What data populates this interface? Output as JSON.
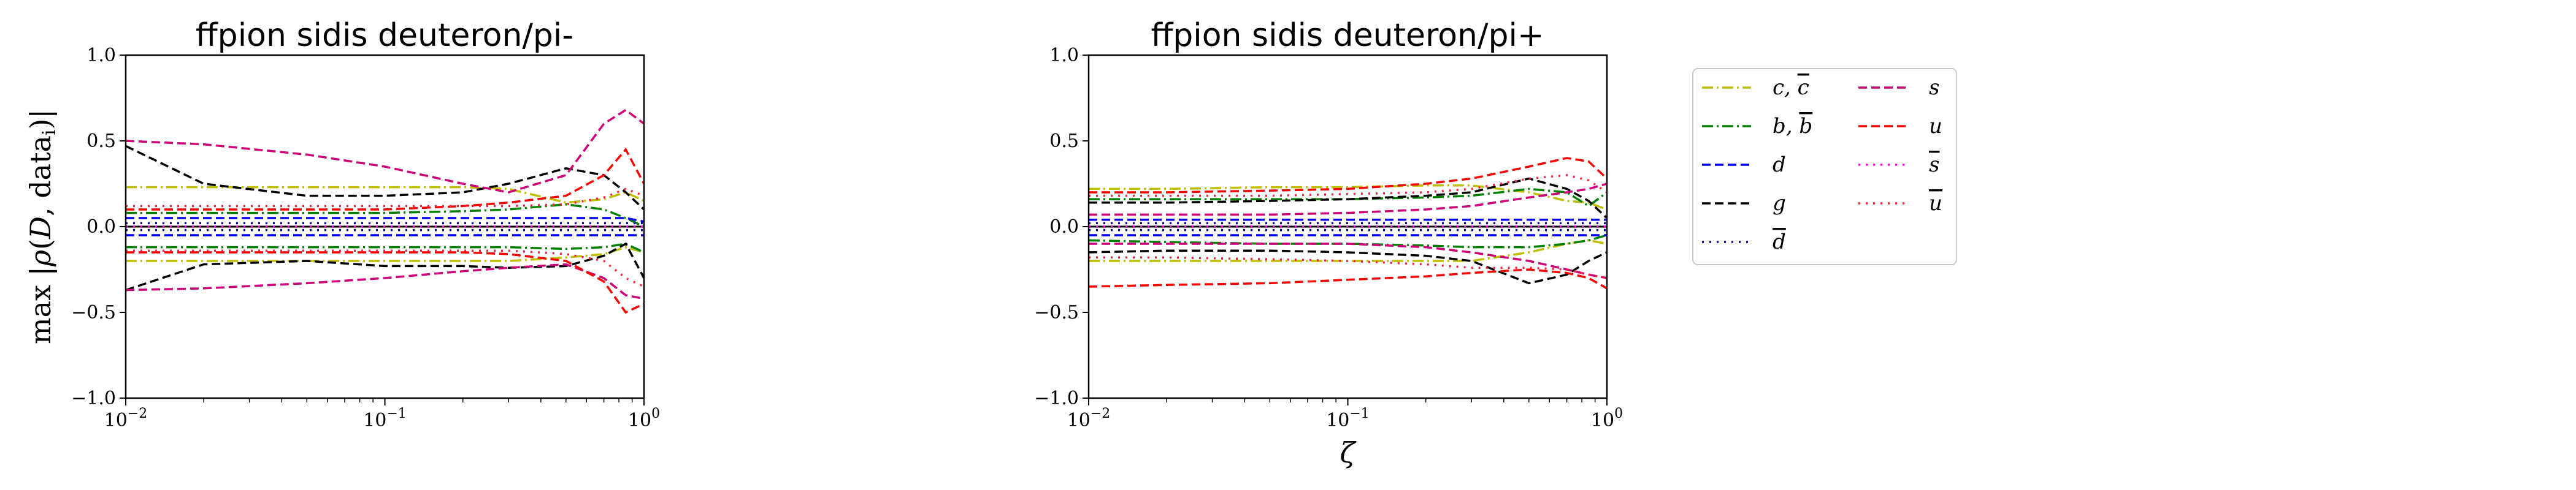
{
  "chart_data": [
    {
      "type": "line",
      "title": "ffpion sidis deuteron/pi-",
      "xlabel": "",
      "ylabel": "max |ρ(D, data_i)|",
      "xscale": "log",
      "xlim": [
        0.01,
        1
      ],
      "ylim": [
        -1,
        1
      ],
      "xticks": [
        "10^-2",
        "10^-1",
        "10^0"
      ],
      "yticks": [
        "−1.0",
        "−0.5",
        "0.0",
        "0.5",
        "1.0"
      ],
      "grid": false,
      "zero_line": true,
      "x": [
        0.01,
        0.02,
        0.05,
        0.1,
        0.2,
        0.3,
        0.5,
        0.7,
        0.85,
        1.0
      ],
      "series": [
        {
          "name": "c, c̄",
          "color": "#bfbf00",
          "upper": [
            0.23,
            0.23,
            0.23,
            0.23,
            0.23,
            0.22,
            0.14,
            0.16,
            0.2,
            0.15
          ],
          "lower": [
            -0.2,
            -0.2,
            -0.2,
            -0.2,
            -0.2,
            -0.2,
            -0.18,
            -0.16,
            -0.12,
            -0.15
          ]
        },
        {
          "name": "b, b̄",
          "color": "#008000",
          "upper": [
            0.08,
            0.08,
            0.08,
            0.08,
            0.09,
            0.1,
            0.13,
            0.1,
            0.05,
            0.0
          ],
          "lower": [
            -0.12,
            -0.12,
            -0.12,
            -0.12,
            -0.12,
            -0.12,
            -0.13,
            -0.12,
            -0.1,
            -0.15
          ]
        },
        {
          "name": "d",
          "color": "#0000ff",
          "upper": [
            0.05,
            0.05,
            0.05,
            0.05,
            0.05,
            0.05,
            0.05,
            0.05,
            0.05,
            0.03
          ],
          "lower": [
            -0.05,
            -0.05,
            -0.05,
            -0.05,
            -0.05,
            -0.05,
            -0.05,
            -0.05,
            -0.05,
            -0.05
          ]
        },
        {
          "name": "g",
          "color": "#000000",
          "upper": [
            0.47,
            0.25,
            0.18,
            0.18,
            0.2,
            0.25,
            0.34,
            0.3,
            0.2,
            0.1
          ],
          "lower": [
            -0.37,
            -0.22,
            -0.2,
            -0.23,
            -0.23,
            -0.24,
            -0.23,
            -0.17,
            -0.1,
            -0.3
          ]
        },
        {
          "name": "d̄",
          "color": "#0000aa",
          "upper": [
            0.02,
            0.02,
            0.02,
            0.02,
            0.02,
            0.02,
            0.02,
            0.02,
            0.02,
            0.02
          ],
          "lower": [
            -0.02,
            -0.02,
            -0.02,
            -0.02,
            -0.02,
            -0.02,
            -0.02,
            -0.02,
            -0.02,
            -0.02
          ]
        },
        {
          "name": "s",
          "color": "#cc0077",
          "upper": [
            0.5,
            0.48,
            0.42,
            0.35,
            0.25,
            0.2,
            0.3,
            0.6,
            0.68,
            0.6
          ],
          "lower": [
            -0.37,
            -0.36,
            -0.33,
            -0.3,
            -0.26,
            -0.24,
            -0.22,
            -0.3,
            -0.4,
            -0.42
          ]
        },
        {
          "name": "u",
          "color": "#ff0000",
          "upper": [
            0.1,
            0.1,
            0.1,
            0.1,
            0.12,
            0.14,
            0.18,
            0.3,
            0.45,
            0.25
          ],
          "lower": [
            -0.15,
            -0.15,
            -0.15,
            -0.15,
            -0.15,
            -0.16,
            -0.2,
            -0.32,
            -0.5,
            -0.45
          ]
        },
        {
          "name": "s̄",
          "color": "#ff00ff",
          "upper": [
            0.0,
            0.0,
            0.0,
            0.0,
            0.0,
            0.0,
            0.0,
            0.0,
            0.0,
            0.0
          ],
          "lower": [
            0.0,
            0.0,
            0.0,
            0.0,
            0.0,
            0.0,
            0.0,
            0.0,
            0.0,
            0.0
          ]
        },
        {
          "name": "ū",
          "color": "#ff2040",
          "upper": [
            0.12,
            0.12,
            0.12,
            0.12,
            0.12,
            0.12,
            0.13,
            0.17,
            0.22,
            0.18
          ],
          "lower": [
            -0.14,
            -0.14,
            -0.14,
            -0.14,
            -0.14,
            -0.14,
            -0.16,
            -0.2,
            -0.3,
            -0.35
          ]
        }
      ]
    },
    {
      "type": "line",
      "title": "ffpion sidis deuteron/pi+",
      "xlabel": "ζ",
      "ylabel": "",
      "xscale": "log",
      "xlim": [
        0.01,
        1
      ],
      "ylim": [
        -1,
        1
      ],
      "xticks": [
        "10^-2",
        "10^-1",
        "10^0"
      ],
      "yticks": [
        "−1.0",
        "−0.5",
        "0.0",
        "0.5",
        "1.0"
      ],
      "grid": false,
      "zero_line": true,
      "x": [
        0.01,
        0.02,
        0.05,
        0.1,
        0.2,
        0.3,
        0.5,
        0.7,
        0.85,
        1.0
      ],
      "series": [
        {
          "name": "c, c̄",
          "color": "#bfbf00",
          "upper": [
            0.22,
            0.22,
            0.23,
            0.23,
            0.24,
            0.24,
            0.2,
            0.15,
            0.14,
            0.1
          ],
          "lower": [
            -0.2,
            -0.2,
            -0.2,
            -0.2,
            -0.2,
            -0.2,
            -0.15,
            -0.1,
            -0.08,
            -0.1
          ]
        },
        {
          "name": "b, b̄",
          "color": "#008000",
          "upper": [
            0.16,
            0.16,
            0.16,
            0.16,
            0.17,
            0.18,
            0.22,
            0.2,
            0.12,
            0.2
          ],
          "lower": [
            -0.08,
            -0.09,
            -0.1,
            -0.1,
            -0.11,
            -0.12,
            -0.12,
            -0.1,
            -0.08,
            -0.05
          ]
        },
        {
          "name": "d",
          "color": "#0000ff",
          "upper": [
            0.04,
            0.04,
            0.04,
            0.04,
            0.04,
            0.04,
            0.04,
            0.04,
            0.04,
            0.04
          ],
          "lower": [
            -0.05,
            -0.05,
            -0.05,
            -0.05,
            -0.05,
            -0.05,
            -0.05,
            -0.05,
            -0.05,
            -0.05
          ]
        },
        {
          "name": "g",
          "color": "#000000",
          "upper": [
            0.14,
            0.14,
            0.15,
            0.16,
            0.18,
            0.2,
            0.28,
            0.22,
            0.15,
            0.05
          ],
          "lower": [
            -0.15,
            -0.14,
            -0.14,
            -0.15,
            -0.17,
            -0.2,
            -0.33,
            -0.28,
            -0.2,
            -0.15
          ]
        },
        {
          "name": "d̄",
          "color": "#0000aa",
          "upper": [
            0.02,
            0.02,
            0.02,
            0.02,
            0.02,
            0.02,
            0.02,
            0.02,
            0.02,
            0.02
          ],
          "lower": [
            -0.02,
            -0.02,
            -0.02,
            -0.02,
            -0.02,
            -0.02,
            -0.02,
            -0.02,
            -0.02,
            -0.02
          ]
        },
        {
          "name": "s",
          "color": "#cc0077",
          "upper": [
            0.07,
            0.07,
            0.07,
            0.08,
            0.1,
            0.12,
            0.17,
            0.2,
            0.22,
            0.25
          ],
          "lower": [
            -0.1,
            -0.1,
            -0.1,
            -0.1,
            -0.12,
            -0.15,
            -0.2,
            -0.25,
            -0.28,
            -0.3
          ]
        },
        {
          "name": "u",
          "color": "#ff0000",
          "upper": [
            0.2,
            0.2,
            0.21,
            0.22,
            0.25,
            0.28,
            0.35,
            0.4,
            0.38,
            0.28
          ],
          "lower": [
            -0.35,
            -0.34,
            -0.33,
            -0.31,
            -0.29,
            -0.27,
            -0.25,
            -0.27,
            -0.3,
            -0.36
          ]
        },
        {
          "name": "s̄",
          "color": "#ff00ff",
          "upper": [
            0.0,
            0.0,
            0.0,
            0.0,
            0.0,
            0.0,
            0.0,
            0.0,
            0.0,
            0.0
          ],
          "lower": [
            0.0,
            0.0,
            0.0,
            0.0,
            0.0,
            0.0,
            0.0,
            0.0,
            0.0,
            0.0
          ]
        },
        {
          "name": "ū",
          "color": "#ff2040",
          "upper": [
            0.18,
            0.18,
            0.18,
            0.19,
            0.2,
            0.22,
            0.28,
            0.3,
            0.27,
            0.2
          ],
          "lower": [
            -0.18,
            -0.18,
            -0.19,
            -0.2,
            -0.22,
            -0.24,
            -0.24,
            -0.25,
            -0.28,
            -0.3
          ]
        }
      ]
    }
  ],
  "legend": {
    "placement": "right",
    "entries": [
      {
        "key": "c_cbar",
        "tex_base": "c, ",
        "tex_bar": "c",
        "color": "#bfbf00",
        "dash": "dashdot"
      },
      {
        "key": "b_bbar",
        "tex_base": "b, ",
        "tex_bar": "b",
        "color": "#008000",
        "dash": "dashdot"
      },
      {
        "key": "d",
        "tex_base": "d",
        "tex_bar": "",
        "color": "#0000ff",
        "dash": "dashed"
      },
      {
        "key": "g",
        "tex_base": "g",
        "tex_bar": "",
        "color": "#000000",
        "dash": "dashed"
      },
      {
        "key": "dbar",
        "tex_base": "",
        "tex_bar": "d",
        "color": "#0000aa",
        "dash": "dotted"
      },
      {
        "key": "s",
        "tex_base": "s",
        "tex_bar": "",
        "color": "#cc0077",
        "dash": "dashed"
      },
      {
        "key": "u",
        "tex_base": "u",
        "tex_bar": "",
        "color": "#ff0000",
        "dash": "dashed"
      },
      {
        "key": "sbar",
        "tex_base": "",
        "tex_bar": "s",
        "color": "#ff00ff",
        "dash": "dotted"
      },
      {
        "key": "ubar",
        "tex_base": "",
        "tex_bar": "u",
        "color": "#ff2040",
        "dash": "dotted"
      }
    ]
  }
}
